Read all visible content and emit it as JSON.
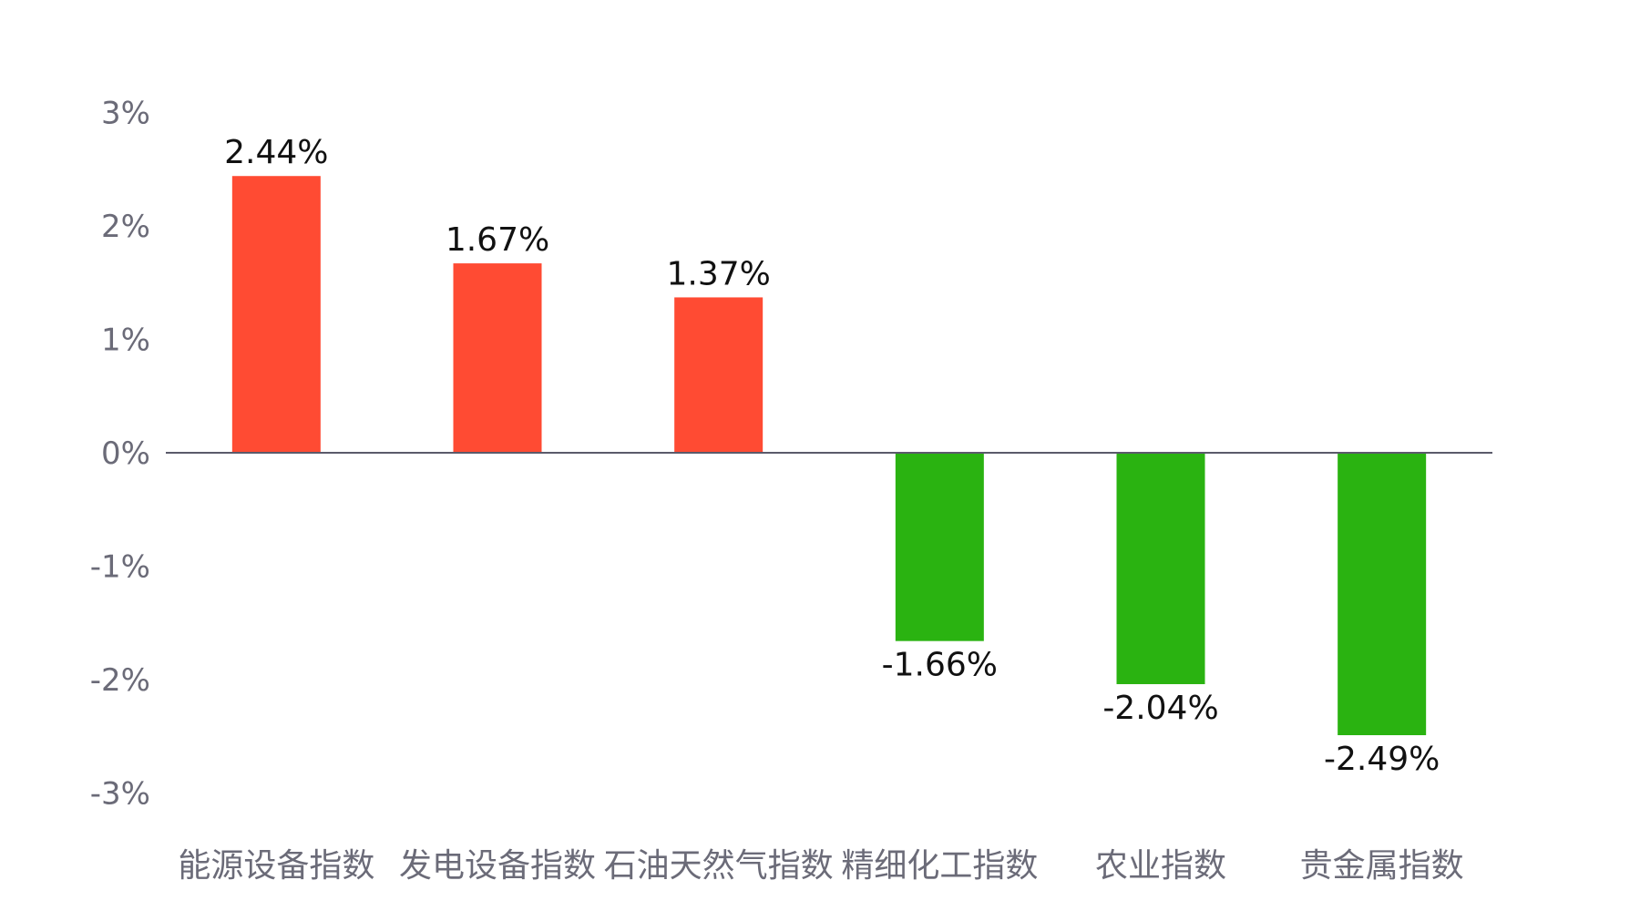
{
  "chart_data": {
    "type": "bar",
    "title": "",
    "xlabel": "",
    "ylabel": "",
    "categories": [
      "能源设备指数",
      "发电设备指数",
      "石油天然气指数",
      "精细化工指数",
      "农业指数",
      "贵金属指数"
    ],
    "values": [
      2.44,
      1.67,
      1.37,
      -1.66,
      -2.04,
      -2.49
    ],
    "value_labels": [
      "2.44%",
      "1.67%",
      "1.37%",
      "-1.66%",
      "-2.04%",
      "-2.49%"
    ],
    "ylim": [
      -3,
      3
    ],
    "yticks": [
      3,
      2,
      1,
      0,
      -1,
      -2,
      -3
    ],
    "ytick_labels": [
      "3%",
      "2%",
      "1%",
      "0%",
      "-1%",
      "-2%",
      "-3%"
    ],
    "grid": false,
    "legend": "none",
    "colors": {
      "positive": "#ff4b33",
      "negative": "#2ab311",
      "baseline": "#5a5a6a",
      "tick_text": "#6b6b78",
      "data_text": "#111111"
    }
  }
}
